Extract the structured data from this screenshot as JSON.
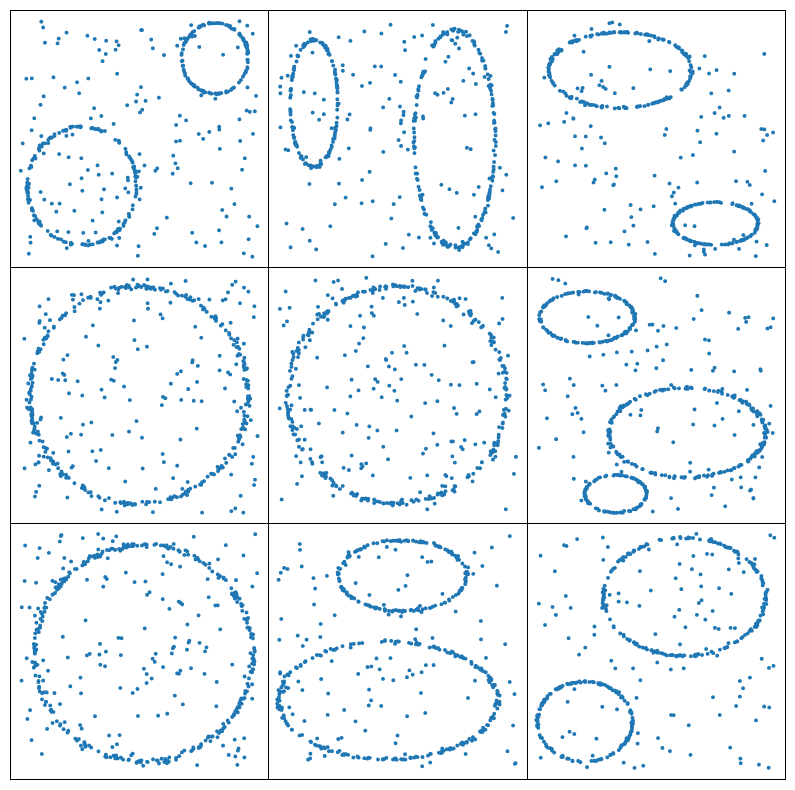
{
  "figure": {
    "rows": 3,
    "cols": 3,
    "grid": false,
    "ticks": false,
    "marker_color": "#1f77b4"
  },
  "chart_data": [
    {
      "type": "scatter",
      "xlim": [
        0,
        1
      ],
      "ylim": [
        0,
        1
      ],
      "noise_points": 160,
      "seed": 11,
      "ellipses": [
        {
          "cx": 0.82,
          "cy": 0.84,
          "rx": 0.14,
          "ry": 0.15,
          "points": 130
        },
        {
          "cx": 0.26,
          "cy": 0.3,
          "rx": 0.23,
          "ry": 0.25,
          "points": 160
        }
      ]
    },
    {
      "type": "scatter",
      "xlim": [
        0,
        1
      ],
      "ylim": [
        0,
        1
      ],
      "noise_points": 130,
      "seed": 23,
      "ellipses": [
        {
          "cx": 0.15,
          "cy": 0.65,
          "rx": 0.1,
          "ry": 0.27,
          "points": 160
        },
        {
          "cx": 0.74,
          "cy": 0.5,
          "rx": 0.17,
          "ry": 0.46,
          "points": 200
        }
      ]
    },
    {
      "type": "scatter",
      "xlim": [
        0,
        1
      ],
      "ylim": [
        0,
        1
      ],
      "noise_points": 120,
      "seed": 37,
      "ellipses": [
        {
          "cx": 0.35,
          "cy": 0.79,
          "rx": 0.3,
          "ry": 0.16,
          "points": 190
        },
        {
          "cx": 0.75,
          "cy": 0.14,
          "rx": 0.18,
          "ry": 0.09,
          "points": 150
        }
      ]
    },
    {
      "type": "scatter",
      "xlim": [
        0,
        1
      ],
      "ylim": [
        0,
        1
      ],
      "noise_points": 170,
      "seed": 41,
      "ellipses": [
        {
          "cx": 0.5,
          "cy": 0.5,
          "rx": 0.46,
          "ry": 0.46,
          "points": 280
        }
      ]
    },
    {
      "type": "scatter",
      "xlim": [
        0,
        1
      ],
      "ylim": [
        0,
        1
      ],
      "noise_points": 170,
      "seed": 53,
      "ellipses": [
        {
          "cx": 0.5,
          "cy": 0.5,
          "rx": 0.46,
          "ry": 0.46,
          "points": 280
        }
      ]
    },
    {
      "type": "scatter",
      "xlim": [
        0,
        1
      ],
      "ylim": [
        0,
        1
      ],
      "noise_points": 120,
      "seed": 67,
      "ellipses": [
        {
          "cx": 0.21,
          "cy": 0.83,
          "rx": 0.2,
          "ry": 0.11,
          "points": 140
        },
        {
          "cx": 0.63,
          "cy": 0.34,
          "rx": 0.33,
          "ry": 0.19,
          "points": 200
        },
        {
          "cx": 0.33,
          "cy": 0.08,
          "rx": 0.13,
          "ry": 0.08,
          "points": 110
        }
      ]
    },
    {
      "type": "scatter",
      "xlim": [
        0,
        1
      ],
      "ylim": [
        0,
        1
      ],
      "noise_points": 170,
      "seed": 79,
      "ellipses": [
        {
          "cx": 0.52,
          "cy": 0.49,
          "rx": 0.46,
          "ry": 0.46,
          "points": 280
        }
      ]
    },
    {
      "type": "scatter",
      "xlim": [
        0,
        1
      ],
      "ylim": [
        0,
        1
      ],
      "noise_points": 130,
      "seed": 83,
      "ellipses": [
        {
          "cx": 0.52,
          "cy": 0.82,
          "rx": 0.27,
          "ry": 0.15,
          "points": 160
        },
        {
          "cx": 0.46,
          "cy": 0.29,
          "rx": 0.46,
          "ry": 0.25,
          "points": 220
        }
      ]
    },
    {
      "type": "scatter",
      "xlim": [
        0,
        1
      ],
      "ylim": [
        0,
        1
      ],
      "noise_points": 120,
      "seed": 97,
      "ellipses": [
        {
          "cx": 0.62,
          "cy": 0.73,
          "rx": 0.34,
          "ry": 0.25,
          "points": 200
        },
        {
          "cx": 0.2,
          "cy": 0.2,
          "rx": 0.2,
          "ry": 0.17,
          "points": 160
        }
      ]
    }
  ]
}
